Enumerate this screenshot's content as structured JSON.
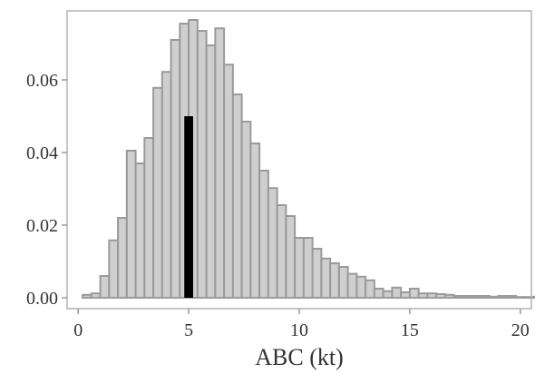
{
  "chart_data": {
    "type": "bar",
    "title": "",
    "xlabel": "ABC (kt)",
    "ylabel": "",
    "xlim": [
      -0.5,
      20.5
    ],
    "ylim": [
      -0.003,
      0.079
    ],
    "x_ticks": [
      0,
      5,
      10,
      15,
      20
    ],
    "y_ticks": [
      0.0,
      0.02,
      0.04,
      0.06
    ],
    "x_tick_labels": [
      "0",
      "5",
      "10",
      "15",
      "20"
    ],
    "y_tick_labels": [
      "0.00",
      "0.02",
      "0.04",
      "0.06"
    ],
    "bin_width": 0.4,
    "bin_start": 0.2,
    "values": [
      0.0008,
      0.0012,
      0.006,
      0.0158,
      0.022,
      0.0405,
      0.037,
      0.044,
      0.0578,
      0.0622,
      0.071,
      0.0755,
      0.0765,
      0.0735,
      0.0695,
      0.0742,
      0.0642,
      0.056,
      0.0485,
      0.0425,
      0.035,
      0.0302,
      0.0255,
      0.0225,
      0.0165,
      0.0165,
      0.0135,
      0.0108,
      0.0095,
      0.0085,
      0.0066,
      0.0058,
      0.0048,
      0.0025,
      0.0018,
      0.0028,
      0.0015,
      0.0025,
      0.0012,
      0.0012,
      0.001,
      0.0008,
      0.0005,
      0.0005,
      0.0005,
      0.0005,
      0.0003,
      0.0005,
      0.0005,
      0.0002,
      0.0002,
      0.0003,
      0.0003,
      0.0003,
      0.0003,
      0.0003,
      0.0003,
      0.0003,
      0.0003
    ],
    "highlight": {
      "x_center": 5,
      "width": 0.4,
      "value": 0.05,
      "color": "#000000"
    },
    "bar_fill": "#cfcfcf",
    "bar_stroke": "#9a9a9a",
    "grid": false,
    "legend": "none"
  }
}
